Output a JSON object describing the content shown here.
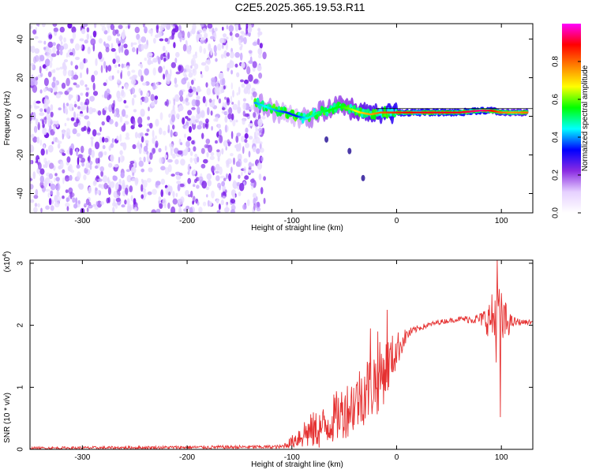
{
  "title": "C2E5.2025.365.19.53.R11",
  "chart_data": [
    {
      "type": "heatmap",
      "name": "spectrogram",
      "xlabel": "Height of straight line (km)",
      "ylabel": "Frequency (Hz)",
      "xlim": [
        -350,
        130
      ],
      "ylim": [
        -50,
        48
      ],
      "xticks": [
        -300,
        -200,
        -100,
        0,
        100
      ],
      "yticks": [
        -40,
        -20,
        0,
        20,
        40
      ],
      "xtick_labels": [
        "-300",
        "-200",
        "-100",
        "0",
        "100"
      ],
      "ytick_labels": [
        "-40",
        "-20",
        "0",
        "20",
        "40"
      ],
      "colorbar": {
        "label": "Normalized spectral amplitude",
        "range": [
          0,
          1
        ],
        "ticks": [
          0.0,
          0.2,
          0.4,
          0.6,
          0.8
        ],
        "tick_labels": [
          "0.0",
          "0.2",
          "0.4",
          "0.6",
          "0.8"
        ],
        "colors": [
          "#ffffff",
          "#e6d0ff",
          "#8a2be2",
          "#0000ff",
          "#00ffff",
          "#00ff00",
          "#ffff00",
          "#ff8000",
          "#ff0000",
          "#ff00ff"
        ]
      },
      "noise_region": {
        "x_range": [
          -350,
          -135
        ],
        "f_range": [
          -50,
          48
        ],
        "amplitude": 0.1
      },
      "signal_track": {
        "x": [
          -135,
          -125,
          -115,
          -105,
          -95,
          -85,
          -75,
          -65,
          -55,
          -45,
          -35,
          -25,
          -15,
          0,
          20,
          40,
          60,
          80,
          90,
          100,
          110,
          125
        ],
        "f": [
          7,
          5,
          3,
          2,
          0,
          -1,
          2,
          3,
          5,
          4,
          2,
          1,
          2,
          2,
          2,
          2,
          2,
          3,
          3,
          2,
          2,
          2
        ],
        "amplitude": [
          0.4,
          0.45,
          0.4,
          0.35,
          0.35,
          0.45,
          0.5,
          0.55,
          0.55,
          0.6,
          0.7,
          0.75,
          0.8,
          0.85,
          0.9,
          0.9,
          0.9,
          0.95,
          0.9,
          0.8,
          0.75,
          0.8
        ]
      },
      "outlier_blobs": [
        {
          "x": -67,
          "f": -12,
          "amplitude": 0.2
        },
        {
          "x": -45,
          "f": -18,
          "amplitude": 0.2
        },
        {
          "x": -32,
          "f": -32,
          "amplitude": 0.2
        }
      ]
    },
    {
      "type": "line",
      "name": "snr",
      "xlabel": "Height of straight line (km)",
      "ylabel": "SNR (10 * v/v)",
      "multiplier": "(x10",
      "multiplier_exp": "4",
      "multiplier_close": ")",
      "xlim": [
        -350,
        130
      ],
      "ylim": [
        0,
        3.05
      ],
      "xticks": [
        -300,
        -200,
        -100,
        0,
        100
      ],
      "yticks": [
        0,
        1,
        2,
        3
      ],
      "xtick_labels": [
        "-300",
        "-200",
        "-100",
        "0",
        "100"
      ],
      "ytick_labels": [
        "0",
        "1",
        "2",
        "3"
      ],
      "color": "#e53030",
      "envelope": {
        "x": [
          -350,
          -110,
          -100,
          -90,
          -80,
          -70,
          -60,
          -50,
          -40,
          -30,
          -20,
          -10,
          0,
          10,
          20,
          40,
          60,
          80,
          90,
          95,
          100,
          110,
          120,
          130
        ],
        "y": [
          0.02,
          0.04,
          0.12,
          0.25,
          0.3,
          0.35,
          0.5,
          0.62,
          0.75,
          0.95,
          1.1,
          1.3,
          1.6,
          1.85,
          1.95,
          2.05,
          2.1,
          2.1,
          2.1,
          2.1,
          2.05,
          2.05,
          2.05,
          2.05
        ],
        "jitter": [
          0.02,
          0.03,
          0.1,
          0.25,
          0.3,
          0.35,
          0.4,
          0.45,
          0.5,
          0.55,
          0.6,
          0.5,
          0.3,
          0.1,
          0.05,
          0.04,
          0.04,
          0.1,
          0.35,
          0.7,
          0.5,
          0.1,
          0.04,
          0.04
        ]
      },
      "spikes": [
        {
          "x": 96,
          "y": 3.05
        },
        {
          "x": 99,
          "y": 0.52
        },
        {
          "x": -9,
          "y": 2.25
        },
        {
          "x": -18,
          "y": 1.9
        },
        {
          "x": -25,
          "y": 1.95
        }
      ]
    }
  ]
}
